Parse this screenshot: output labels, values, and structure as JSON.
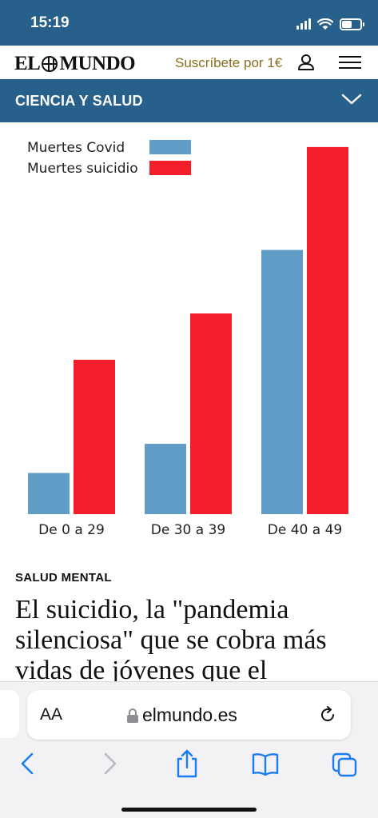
{
  "status": {
    "time": "15:19"
  },
  "header": {
    "logo_left": "EL",
    "logo_right": "MUNDO",
    "subscribe_label": "Suscríbete por 1€"
  },
  "section": {
    "title": "CIENCIA Y SALUD"
  },
  "chart_data": {
    "type": "bar",
    "categories": [
      "De 0 a 29",
      "De 30 a 39",
      "De 40 a 49"
    ],
    "series": [
      {
        "name": "Muertes Covid",
        "color": "#5f9cc6",
        "values": [
          12,
          20.5,
          77
        ]
      },
      {
        "name": "Muertes suicidio",
        "color": "#f41f2a",
        "values": [
          45,
          58.5,
          107
        ]
      }
    ],
    "ylim": [
      0,
      110
    ],
    "grid": false,
    "legend": "top-left",
    "title": "",
    "xlabel": "",
    "ylabel": ""
  },
  "article": {
    "kicker": "SALUD MENTAL",
    "headline": "El suicidio, la \"pandemia silenciosa\" que se cobra más vidas de jóvenes que el"
  },
  "browser": {
    "aa_label": "AA",
    "url": "elmundo.es"
  },
  "colors": {
    "brand_blue": "#27608a",
    "subscribe_gold": "#8a6f1f",
    "ios_blue": "#1a7cf5"
  }
}
